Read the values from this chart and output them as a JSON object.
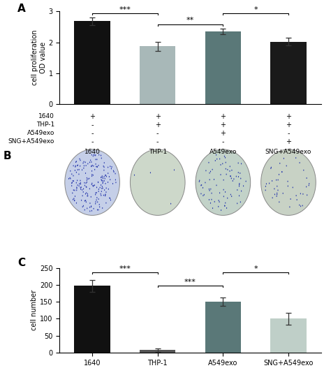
{
  "panel_A": {
    "categories": [
      "1640",
      "THP-1",
      "A549exo",
      "SNG+A549exo"
    ],
    "values": [
      2.68,
      1.87,
      2.35,
      2.02
    ],
    "errors": [
      0.12,
      0.15,
      0.08,
      0.12
    ],
    "colors": [
      "#111111",
      "#a8b8b8",
      "#5a7878",
      "#1a1a1a"
    ],
    "ylabel": "cell proliferation\nOD value",
    "ylim": [
      0,
      3.0
    ],
    "yticks": [
      0,
      1.0,
      2.0,
      3.0
    ],
    "table_rows": [
      "1640",
      "THP-1",
      "A549exo",
      "SNG+A549exo"
    ],
    "table_data": [
      [
        "+",
        "+",
        "+",
        "+"
      ],
      [
        "-",
        "+",
        "+",
        "+"
      ],
      [
        "-",
        "-",
        "+",
        "-"
      ],
      [
        "-",
        "-",
        "-",
        "+"
      ]
    ]
  },
  "panel_B": {
    "labels": [
      "1640",
      "THP-1",
      "A549exo",
      "SNG+A549exo"
    ],
    "n_dots": [
      200,
      4,
      80,
      45
    ],
    "face_colors": [
      "#c5cfe8",
      "#cdd8ca",
      "#c2d2c8",
      "#c8d2c5"
    ],
    "dot_color": "#2233aa"
  },
  "panel_C": {
    "categories": [
      "1640",
      "THP-1",
      "A549exo",
      "SNG+A549exo"
    ],
    "values": [
      197,
      7,
      150,
      100
    ],
    "errors": [
      18,
      5,
      12,
      18
    ],
    "colors": [
      "#111111",
      "#555555",
      "#5a7878",
      "#bfcfc8"
    ],
    "ylabel": "cell number",
    "ylim": [
      0,
      250
    ],
    "yticks": [
      0,
      50,
      100,
      150,
      200,
      250
    ]
  },
  "panel_A_label": "A",
  "panel_B_label": "B",
  "panel_C_label": "C",
  "figure_bg": "#ffffff"
}
